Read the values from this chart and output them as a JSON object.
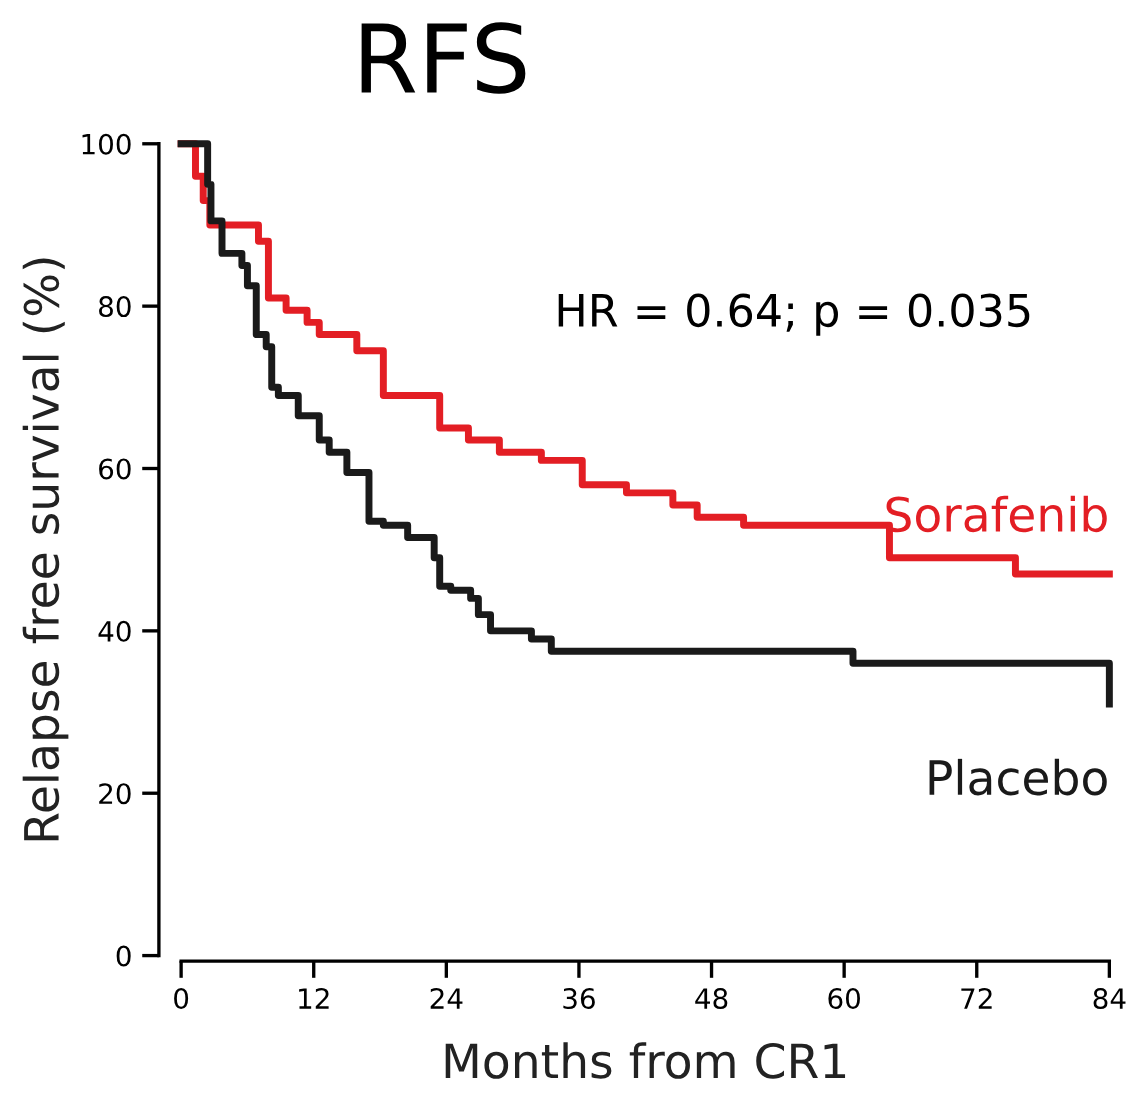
{
  "chart_data": {
    "type": "step",
    "title": "RFS",
    "xlabel": "Months from CR1",
    "ylabel": "Relapse free survival (%)",
    "annotations": [
      "HR = 0.64; p = 0.035"
    ],
    "xlim": [
      0,
      84
    ],
    "xticks": [
      0,
      12,
      24,
      36,
      48,
      60,
      72,
      84
    ],
    "ylim": [
      0,
      100
    ],
    "yticks": [
      0,
      20,
      40,
      60,
      80,
      100
    ],
    "grid": false,
    "legend": false,
    "series": [
      {
        "name": "Sorafenib",
        "color": "#e31e24",
        "x": [
          0,
          1.3,
          2,
          2.6,
          7.0,
          7.9,
          9.5,
          11.4,
          12.5,
          15.9,
          18.3,
          23.4,
          26,
          28.8,
          32.6,
          36.3,
          40.3,
          44.5,
          46.7,
          50.9,
          64.1,
          75.5,
          84
        ],
        "values": [
          100,
          96,
          93,
          90,
          88,
          81,
          79.5,
          78,
          76.5,
          74.5,
          69,
          65,
          63.5,
          62,
          61,
          58,
          57,
          55.5,
          54,
          53,
          49,
          47,
          47
        ]
      },
      {
        "name": "Placebo",
        "color": "#1a1a1a",
        "x": [
          0,
          2.4,
          2.7,
          3.7,
          5.5,
          6.0,
          6.8,
          7.7,
          8.2,
          8.8,
          10.6,
          12.5,
          13.4,
          15.0,
          17.0,
          18.3,
          20.5,
          22.9,
          23.4,
          24.4,
          26.2,
          26.9,
          28.0,
          31.7,
          33.5,
          60.8,
          84
        ],
        "values": [
          100,
          95,
          90.5,
          86.5,
          85,
          82.5,
          76.5,
          75,
          70,
          69,
          66.5,
          63.5,
          62,
          59.5,
          53.5,
          53,
          51.5,
          49,
          45.5,
          45,
          44,
          42,
          40,
          39,
          37.5,
          36,
          31
        ]
      }
    ]
  }
}
